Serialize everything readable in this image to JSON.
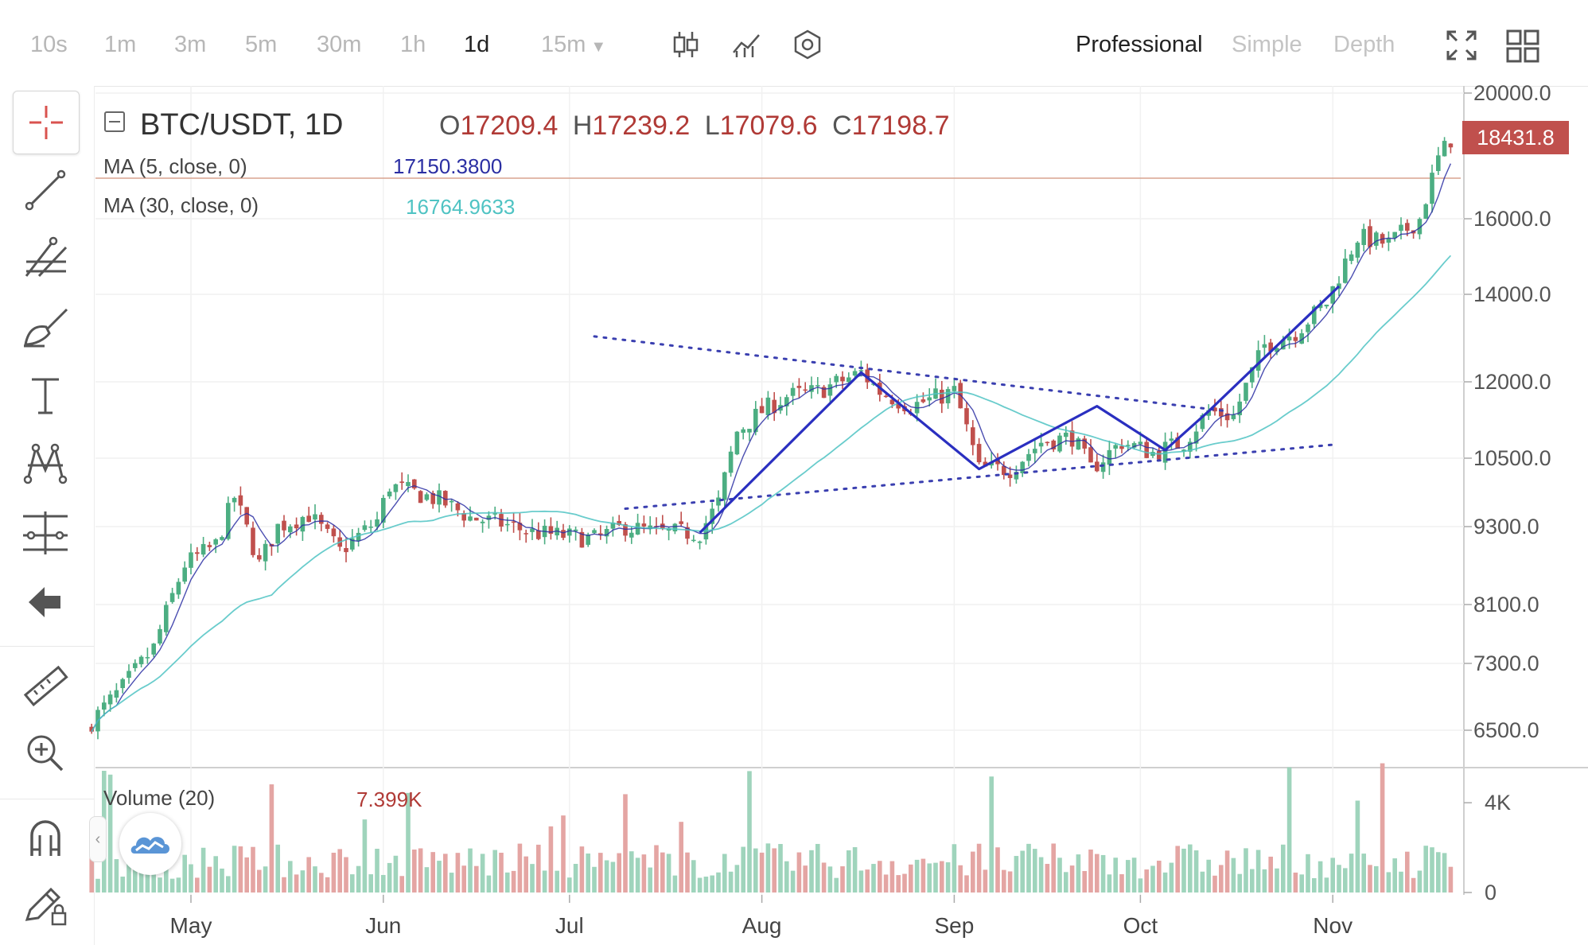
{
  "intervals": [
    "10s",
    "1m",
    "3m",
    "5m",
    "30m",
    "1h",
    "1d",
    "15m"
  ],
  "active_interval": "1d",
  "view_modes": [
    "Professional",
    "Simple",
    "Depth"
  ],
  "active_view_mode": "Professional",
  "icons": {
    "candles": "candlestick-icon",
    "indicators": "indicator-icon",
    "settings": "settings-icon",
    "fullscreen": "fullscreen-icon",
    "layout": "grid-layout-icon",
    "tools": [
      "crosshair-icon",
      "trend-line-icon",
      "fib-tool-icon",
      "brush-icon",
      "text-icon",
      "pattern-icon",
      "measure-icon",
      "back-arrow-icon",
      "ruler-icon",
      "zoom-in-icon",
      "magnet-icon",
      "lock-pencil-icon"
    ]
  },
  "chart": {
    "symbol": "BTC/USDT, 1D",
    "ohlc": {
      "o_label": "O",
      "o": "17209.4",
      "h_label": "H",
      "h": "17239.2",
      "l_label": "L",
      "l": "17079.6",
      "c_label": "C",
      "c": "17198.7"
    },
    "ma5_label": "MA (5, close, 0)",
    "ma5_value": "17150.3800",
    "ma30_label": "MA (30, close, 0)",
    "ma30_value": "16764.9633",
    "volume_label": "Volume (20)",
    "volume_value": "7.399K",
    "last_price": "18431.8",
    "colors": {
      "up": "#4cae82",
      "down": "#c0504d",
      "ma5": "#2b2fa3",
      "ma30": "#4fc3c3",
      "pattern": "#2a2fc0",
      "trendline": "#3a3fb0",
      "price_tag": "#c0504d"
    }
  },
  "chart_data": {
    "type": "candlestick",
    "x_tick_labels": [
      "May",
      "Jun",
      "Jul",
      "Aug",
      "Sep",
      "Oct",
      "Nov"
    ],
    "y_tick_labels": [
      "20000.0",
      "16000.0",
      "14000.0",
      "12000.0",
      "10500.0",
      "9300.0",
      "8100.0",
      "7300.0",
      "6500.0"
    ],
    "y_ticks": [
      20000,
      16000,
      14000,
      12000,
      10500,
      9300,
      8100,
      7300,
      6500
    ],
    "y_scale": "log",
    "volume_tick_labels": [
      "4K",
      "0"
    ],
    "volume_ticks": [
      4000,
      0
    ],
    "series": [
      {
        "name": "MA (5, close, 0)",
        "value": 17150.38
      },
      {
        "name": "MA (30, close, 0)",
        "value": 16764.9633
      }
    ],
    "close_path": [
      [
        "2020-04-15",
        6600
      ],
      [
        "2020-04-20",
        7000
      ],
      [
        "2020-04-25",
        7500
      ],
      [
        "2020-04-30",
        8700
      ],
      [
        "2020-05-05",
        9000
      ],
      [
        "2020-05-08",
        9800
      ],
      [
        "2020-05-12",
        8700
      ],
      [
        "2020-05-15",
        9300
      ],
      [
        "2020-05-20",
        9500
      ],
      [
        "2020-05-25",
        8900
      ],
      [
        "2020-05-31",
        9400
      ],
      [
        "2020-06-02",
        10000
      ],
      [
        "2020-06-10",
        9750
      ],
      [
        "2020-06-15",
        9450
      ],
      [
        "2020-06-20",
        9350
      ],
      [
        "2020-06-25",
        9200
      ],
      [
        "2020-06-30",
        9150
      ],
      [
        "2020-07-05",
        9100
      ],
      [
        "2020-07-10",
        9300
      ],
      [
        "2020-07-15",
        9200
      ],
      [
        "2020-07-22",
        9200
      ],
      [
        "2020-07-25",
        9700
      ],
      [
        "2020-07-28",
        11000
      ],
      [
        "2020-08-01",
        11400
      ],
      [
        "2020-08-05",
        11700
      ],
      [
        "2020-08-10",
        11800
      ],
      [
        "2020-08-17",
        12200
      ],
      [
        "2020-08-20",
        11800
      ],
      [
        "2020-08-25",
        11500
      ],
      [
        "2020-09-01",
        11800
      ],
      [
        "2020-09-05",
        10300
      ],
      [
        "2020-09-10",
        10300
      ],
      [
        "2020-09-15",
        10800
      ],
      [
        "2020-09-20",
        10900
      ],
      [
        "2020-09-23",
        10300
      ],
      [
        "2020-09-28",
        10800
      ],
      [
        "2020-10-03",
        10600
      ],
      [
        "2020-10-08",
        10800
      ],
      [
        "2020-10-12",
        11400
      ],
      [
        "2020-10-16",
        11300
      ],
      [
        "2020-10-21",
        12800
      ],
      [
        "2020-10-26",
        13100
      ],
      [
        "2020-10-31",
        13800
      ],
      [
        "2020-11-05",
        15500
      ],
      [
        "2020-11-10",
        15300
      ],
      [
        "2020-11-15",
        16000
      ],
      [
        "2020-11-18",
        17800
      ],
      [
        "2020-11-20",
        18431.8
      ]
    ],
    "drawings": {
      "falling_resistance": [
        [
          "2020-07-05",
          13000
        ],
        [
          "2020-10-15",
          11400
        ]
      ],
      "rising_support": [
        [
          "2020-07-10",
          9600
        ],
        [
          "2020-11-01",
          10750
        ]
      ],
      "zigzag": [
        [
          "2020-07-22",
          9200
        ],
        [
          "2020-08-17",
          12200
        ],
        [
          "2020-09-05",
          10300
        ],
        [
          "2020-09-24",
          11500
        ],
        [
          "2020-10-05",
          10650
        ],
        [
          "2020-10-12",
          11400
        ],
        [
          "2020-11-02",
          14200
        ]
      ]
    }
  }
}
